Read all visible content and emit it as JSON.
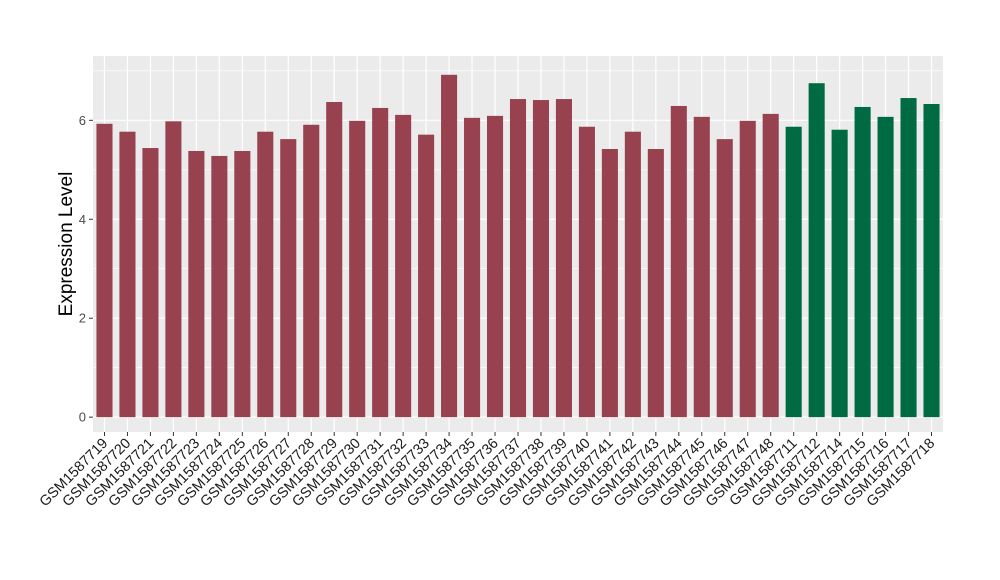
{
  "chart_data": {
    "type": "bar",
    "title": "",
    "xlabel": "",
    "ylabel": "Expression Level",
    "ylim": [
      -0.3,
      7.3
    ],
    "yticks": [
      0,
      2,
      4,
      6
    ],
    "grid": true,
    "categories": [
      "GSM1587719",
      "GSM1587720",
      "GSM1587721",
      "GSM1587722",
      "GSM1587723",
      "GSM1587724",
      "GSM1587725",
      "GSM1587726",
      "GSM1587727",
      "GSM1587728",
      "GSM1587729",
      "GSM1587730",
      "GSM1587731",
      "GSM1587732",
      "GSM1587733",
      "GSM1587734",
      "GSM1587735",
      "GSM1587736",
      "GSM1587737",
      "GSM1587738",
      "GSM1587739",
      "GSM1587740",
      "GSM1587741",
      "GSM1587742",
      "GSM1587743",
      "GSM1587744",
      "GSM1587745",
      "GSM1587746",
      "GSM1587747",
      "GSM1587748",
      "GSM1587711",
      "GSM1587712",
      "GSM1587714",
      "GSM1587715",
      "GSM1587716",
      "GSM1587717",
      "GSM1587718"
    ],
    "values": [
      5.93,
      5.77,
      5.44,
      5.98,
      5.38,
      5.28,
      5.38,
      5.77,
      5.62,
      5.91,
      6.37,
      5.99,
      6.25,
      6.11,
      5.71,
      6.92,
      6.05,
      6.09,
      6.43,
      6.41,
      6.43,
      5.87,
      5.42,
      5.77,
      5.42,
      6.29,
      6.07,
      5.62,
      5.99,
      6.13,
      5.87,
      6.75,
      5.81,
      6.27,
      6.07,
      6.45,
      6.33
    ],
    "groups": [
      0,
      0,
      0,
      0,
      0,
      0,
      0,
      0,
      0,
      0,
      0,
      0,
      0,
      0,
      0,
      0,
      0,
      0,
      0,
      0,
      0,
      0,
      0,
      0,
      0,
      0,
      0,
      0,
      0,
      0,
      1,
      1,
      1,
      1,
      1,
      1,
      1
    ],
    "group_colors": [
      "#99424f",
      "#006a43"
    ],
    "panel_background": "#ebebeb",
    "grid_color": "#ffffff"
  }
}
